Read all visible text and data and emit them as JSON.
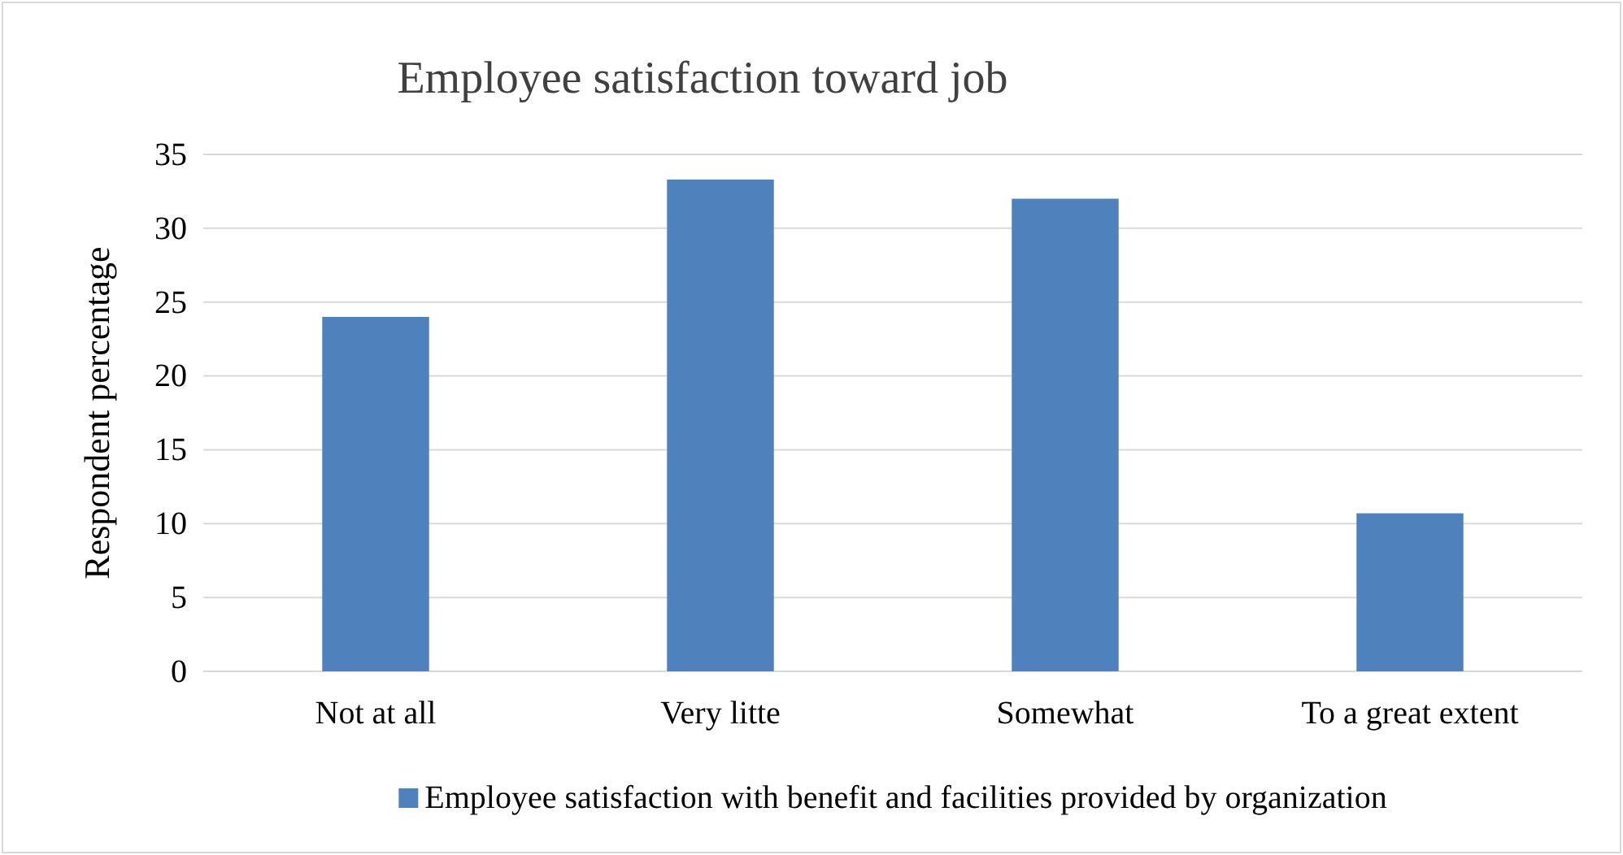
{
  "chart_data": {
    "type": "bar",
    "title": "Employee satisfaction toward job",
    "ylabel": "Respondent percentage",
    "categories": [
      "Not at all",
      "Very litte",
      "Somewhat",
      "To a great extent"
    ],
    "series": [
      {
        "name": "Employee satisfaction with benefit and facilities provided by organization",
        "color": "#4f81bd",
        "values": [
          24,
          33.3,
          32,
          10.7
        ]
      }
    ],
    "ylim": [
      0,
      35
    ],
    "yticks": [
      0,
      5,
      10,
      15,
      20,
      25,
      30,
      35
    ],
    "grid": "y",
    "legend": "bottom"
  }
}
